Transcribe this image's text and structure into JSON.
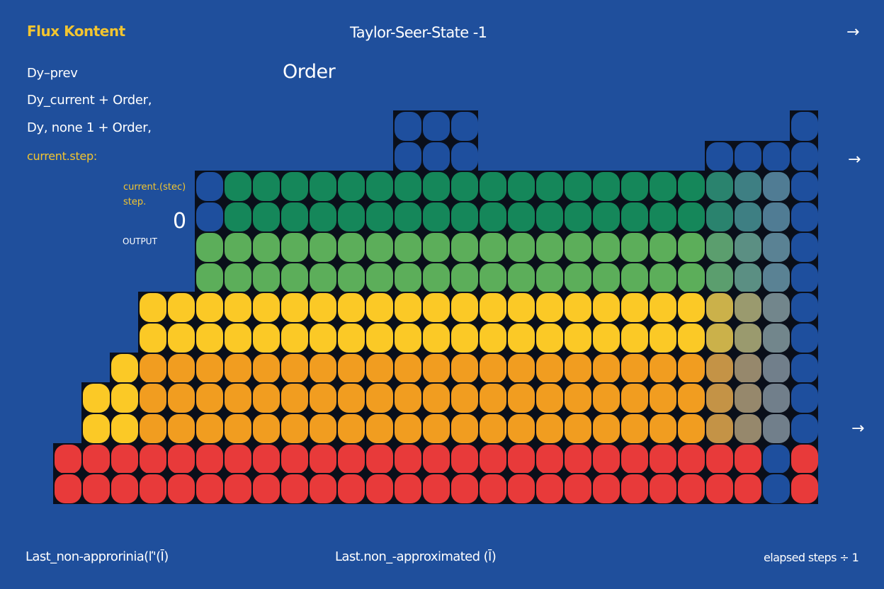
{
  "header": {
    "brand": "Flux Kontent",
    "title": "Taylor-Seer-State -1",
    "order_label": "Order",
    "arrow_icon": "arrow-right-icon"
  },
  "code_lines": [
    "Dy–prev",
    "Dy_current  + Order,",
    "Dy, none  1  + Order,"
  ],
  "current_step_label": "current.step:",
  "annotation": {
    "line1": "current.(stec)",
    "line2": "step.",
    "value": "0",
    "output_label": "OUTPUT"
  },
  "footer": {
    "left": "Last_non-approrinia(ľ'(Ī)",
    "center": "Last.non_-approximated (Ī)",
    "right": "elapsed steps ÷ 1"
  },
  "colors": {
    "background": "#1f4f9c",
    "accent_yellow": "#f2c530",
    "blue_cell": "#1e4f9e",
    "dark_green": "#15875a",
    "light_green": "#5cae5a",
    "yellow": "#fbc926",
    "orange": "#f19d20",
    "red": "#e83a3a",
    "fade_target": "#5a7a9e"
  },
  "grid_legend": {
    "B": "blue_cell",
    "G": "dark_green",
    "g": "light_green",
    "Y": "yellow",
    "O": "orange",
    "R": "red",
    "F": "faded"
  },
  "grid": [
    "............BBB...........B",
    "............BBB........BBBB",
    ".....BGGGGGGGGGGGGGGGGGFFFB",
    ".....BGGGGGGGGGGGGGGGGGFFFB",
    ".....ggggggggggggggggggFFFB",
    ".....ggggggggggggggggggFFFB",
    "...YYYYYYYYYYYYYYYYYYYYFFFB",
    "...YYYYYYYYYYYYYYYYYYYYFFFB",
    "..YOOOOOOOOOOOOOOOOOOOOFFFB",
    ".YYOOOOOOOOOOOOOOOOOOOOFFFB",
    ".YYOOOOOOOOOOOOOOOOOOOOFFFB",
    "RRRRRRRRRRRRRRRRRRRRRRRRRBR",
    "RRRRRRRRRRRRRRRRRRRRRRRRRBR"
  ]
}
